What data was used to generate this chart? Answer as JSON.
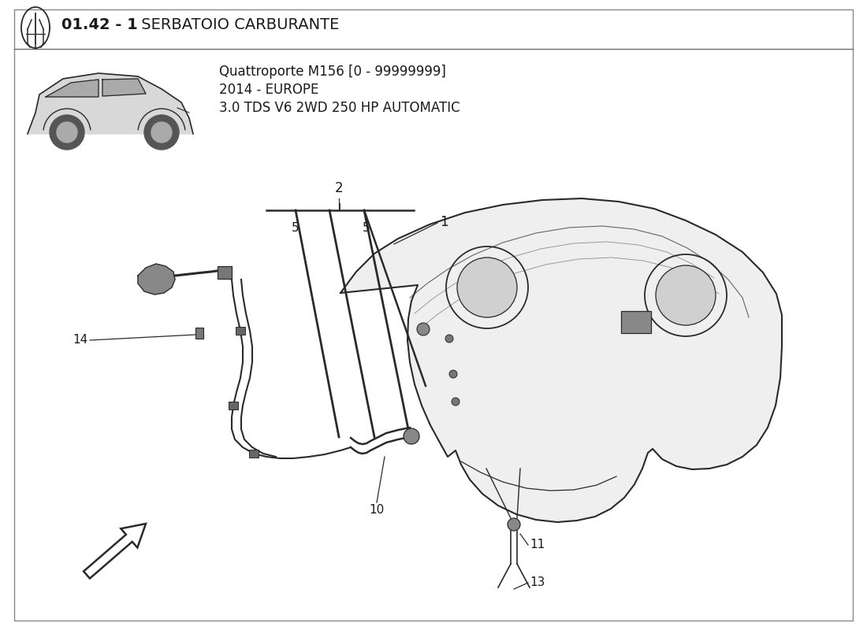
{
  "bg_color": "#ffffff",
  "text_color": "#1a1a1a",
  "line_color": "#2a2a2a",
  "title_bold": "01.42 - 1",
  "title_normal": " SERBATOIO CARBURANTE",
  "subtitle_line1": "Quattroporte M156 [0 - 99999999]",
  "subtitle_line2": "2014 - EUROPE",
  "subtitle_line3": "3.0 TDS V6 2WD 250 HP AUTOMATIC",
  "border_color": "#888888"
}
